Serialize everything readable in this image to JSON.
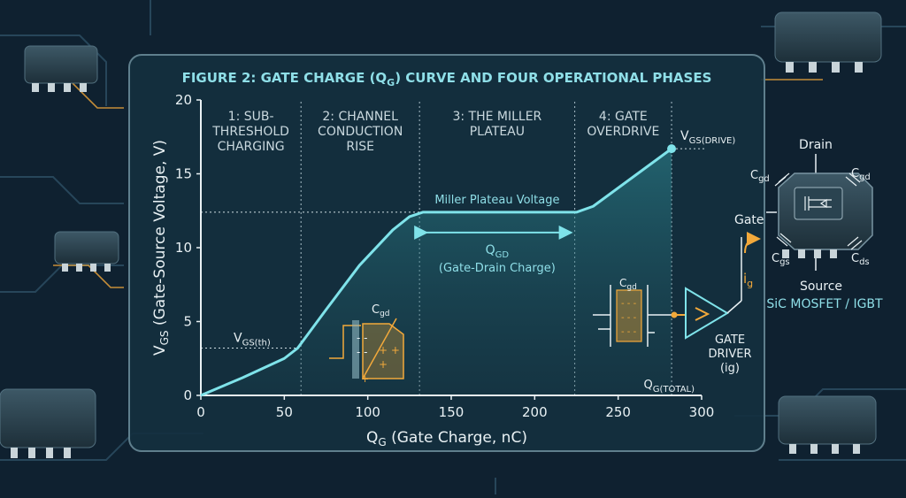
{
  "colors": {
    "background": "#0f2130",
    "panel": "#14303f",
    "panel_border": "#5f7f8d",
    "curve": "#7fe3ea",
    "accent": "#f2a93b",
    "text": "#e9f1f4",
    "title": "#8fdfe8"
  },
  "chart_data": {
    "type": "line",
    "title": "FIGURE 2: GATE CHARGE (Q",
    "title_sub": "G",
    "title_rest": ") CURVE AND FOUR OPERATIONAL PHASES",
    "xlabel_main": "Q",
    "xlabel_sub": "G",
    "xlabel_rest": " (Gate Charge, nC)",
    "ylabel_main": "V",
    "ylabel_sub": "GS",
    "ylabel_rest": " (Gate-Source Voltage, V)",
    "xlim": [
      0,
      300
    ],
    "ylim": [
      0,
      20
    ],
    "x_ticks": [
      "0",
      "50",
      "100",
      "150",
      "200",
      "250",
      "300"
    ],
    "y_ticks": [
      "0",
      "5",
      "10",
      "15",
      "20"
    ],
    "grid": false,
    "series": [
      {
        "points": [
          [
            0,
            0
          ],
          [
            25,
            1.2
          ],
          [
            50,
            2.5
          ],
          [
            58,
            3.2
          ],
          [
            75,
            5.8
          ],
          [
            95,
            8.8
          ],
          [
            115,
            11.2
          ],
          [
            125,
            12.1
          ],
          [
            133,
            12.4
          ],
          [
            225,
            12.4
          ],
          [
            235,
            12.8
          ],
          [
            282,
            16.7
          ]
        ]
      }
    ],
    "phases": [
      {
        "lines": [
          "1: SUB-",
          "THRESHOLD",
          "CHARGING"
        ],
        "x_start": 0,
        "x_end": 60
      },
      {
        "lines": [
          "2: CHANNEL",
          "CONDUCTION",
          "RISE"
        ],
        "x_start": 60,
        "x_end": 131
      },
      {
        "lines": [
          "3: THE MILLER",
          "PLATEAU"
        ],
        "x_start": 131,
        "x_end": 224
      },
      {
        "lines": [
          "4: GATE",
          "OVERDRIVE"
        ],
        "x_start": 224,
        "x_end": 282
      }
    ],
    "annotations": {
      "vgs_th_main": "V",
      "vgs_th_sub": "GS(th)",
      "vgs_th_value": 3.2,
      "miller_label": "Miller Plateau Voltage",
      "miller_value": 12.4,
      "qgd_main": "Q",
      "qgd_sub": "GD",
      "qgd_desc": "(Gate-Drain Charge)",
      "qgd_range": [
        131,
        224
      ],
      "vgs_drive_main": "V",
      "vgs_drive_sub": "GS(DRIVE)",
      "vgs_drive_point": [
        282,
        16.7
      ],
      "qg_total_main": "Q",
      "qg_total_sub": "G(TOTAL)",
      "cgd_main": "C",
      "cgd_sub": "gd"
    }
  },
  "device": {
    "drain": "Drain",
    "gate": "Gate",
    "source": "Source",
    "cap_main": "C",
    "cgd_sub": "gd",
    "cgs_sub": "gs",
    "cds_sub": "ds",
    "ig_main": "i",
    "ig_sub": "g",
    "name": "SiC MOSFET / IGBT"
  },
  "driver": {
    "line1": "GATE",
    "line2": "DRIVER",
    "line3": "(ig)"
  }
}
